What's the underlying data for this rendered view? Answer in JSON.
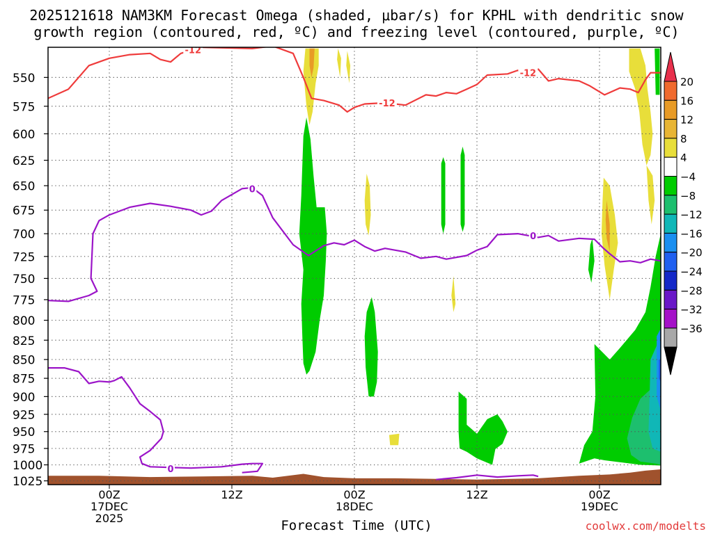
{
  "title_line1": "2025121618 NAM3KM Forecast Omega (shaded, μbar/s) for KPHL with dendritic snow",
  "title_line2": "growth region (contoured, red, ºC) and freezing level (contoured, purple, ºC)",
  "credit": "coolwx.com/modelts",
  "chart_data": {
    "type": "heatmap",
    "xlabel": "Forecast Time (UTC)",
    "ylabel": "",
    "x_ticks": [
      {
        "label": "00Z",
        "sub1": "17DEC",
        "sub2": "2025"
      },
      {
        "label": "12Z",
        "sub1": "",
        "sub2": ""
      },
      {
        "label": "00Z",
        "sub1": "18DEC",
        "sub2": ""
      },
      {
        "label": "12Z",
        "sub1": "",
        "sub2": ""
      },
      {
        "label": "00Z",
        "sub1": "19DEC",
        "sub2": ""
      }
    ],
    "x_tick_hours": [
      6,
      18,
      30,
      42,
      54
    ],
    "x_range_hours": [
      0,
      60
    ],
    "y_ticks": [
      550,
      575,
      600,
      625,
      650,
      675,
      700,
      725,
      750,
      775,
      800,
      825,
      850,
      875,
      900,
      925,
      950,
      975,
      1000,
      1025
    ],
    "y_range_hpa": [
      525,
      1031
    ],
    "grid": true,
    "colorbar": {
      "labels": [
        "20",
        "16",
        "12",
        "8",
        "4",
        "−4",
        "−8",
        "−12",
        "−16",
        "−20",
        "−24",
        "−28",
        "−32",
        "−36"
      ],
      "colors": [
        "#e8304c",
        "#f06a2e",
        "#e89b26",
        "#e8b534",
        "#e8de3a",
        "#ffffff",
        "#00cc00",
        "#1dbf6e",
        "#10b7b7",
        "#1a8ff0",
        "#2060f0",
        "#1428c8",
        "#6a17c8",
        "#a512c8",
        "#a8a8a8",
        "#000000"
      ]
    },
    "contour_labels": {
      "snow_growth": "-12",
      "freezing": "0"
    },
    "snow_growth_contour": [
      [
        0,
        568
      ],
      [
        2,
        560
      ],
      [
        4,
        540
      ],
      [
        6,
        534
      ],
      [
        8,
        531
      ],
      [
        10,
        530
      ],
      [
        11,
        535
      ],
      [
        12,
        537
      ],
      [
        13,
        530
      ],
      [
        15,
        525
      ],
      [
        20,
        526
      ],
      [
        22,
        524
      ],
      [
        24,
        530
      ],
      [
        25,
        550
      ],
      [
        25.8,
        568
      ],
      [
        27,
        570
      ],
      [
        28.5,
        574
      ],
      [
        29.3,
        580
      ],
      [
        30,
        576
      ],
      [
        31,
        573
      ],
      [
        33,
        572
      ],
      [
        35,
        574
      ],
      [
        37,
        565
      ],
      [
        38,
        566
      ],
      [
        39,
        563
      ],
      [
        40,
        564
      ],
      [
        41,
        560
      ],
      [
        42,
        556
      ],
      [
        43,
        548
      ],
      [
        45,
        547
      ],
      [
        46,
        544
      ],
      [
        47,
        548
      ],
      [
        48,
        543
      ],
      [
        49,
        553
      ],
      [
        50,
        551
      ],
      [
        52,
        553
      ],
      [
        53,
        557
      ],
      [
        54.5,
        565
      ],
      [
        56,
        559
      ],
      [
        57,
        560
      ],
      [
        57.8,
        563
      ],
      [
        58.5,
        552
      ],
      [
        59,
        546
      ],
      [
        60,
        546
      ]
    ],
    "freezing_upper": [
      [
        0,
        776
      ],
      [
        2,
        777
      ],
      [
        4,
        770
      ],
      [
        4.8,
        765
      ],
      [
        4.2,
        750
      ],
      [
        4.4,
        700
      ],
      [
        5,
        686
      ],
      [
        6,
        680
      ],
      [
        8,
        672
      ],
      [
        10,
        668
      ],
      [
        12,
        671
      ],
      [
        14,
        675
      ],
      [
        15,
        680
      ],
      [
        16,
        676
      ],
      [
        17,
        665
      ],
      [
        19,
        653
      ],
      [
        20,
        652
      ],
      [
        21,
        660
      ],
      [
        22,
        683
      ],
      [
        24,
        712
      ],
      [
        25.5,
        724
      ],
      [
        27,
        713
      ],
      [
        28,
        710
      ],
      [
        29,
        712
      ],
      [
        30,
        707
      ],
      [
        31,
        714
      ],
      [
        32,
        719
      ],
      [
        33,
        716
      ],
      [
        35,
        720
      ],
      [
        36.5,
        727
      ],
      [
        38,
        725
      ],
      [
        39,
        728
      ],
      [
        41,
        724
      ],
      [
        42,
        718
      ],
      [
        43,
        714
      ],
      [
        44,
        701
      ],
      [
        46,
        700
      ],
      [
        48,
        704
      ],
      [
        49,
        702
      ],
      [
        50,
        708
      ],
      [
        52,
        705
      ],
      [
        53.5,
        706
      ],
      [
        54.3,
        715
      ],
      [
        55,
        722
      ],
      [
        56,
        731
      ],
      [
        57,
        730
      ],
      [
        58,
        732
      ],
      [
        59,
        728
      ],
      [
        60,
        730
      ]
    ],
    "freezing_lower": [
      [
        0,
        861
      ],
      [
        1.6,
        861
      ],
      [
        3,
        866
      ],
      [
        4,
        882
      ],
      [
        5,
        879
      ],
      [
        6,
        880
      ],
      [
        6.5,
        878
      ],
      [
        7.2,
        873
      ],
      [
        8,
        888
      ],
      [
        9,
        910
      ],
      [
        10,
        921
      ],
      [
        11,
        933
      ],
      [
        11.3,
        950
      ],
      [
        11.1,
        960
      ],
      [
        10,
        978
      ],
      [
        9,
        988
      ],
      [
        9.2,
        998
      ],
      [
        10,
        1003
      ],
      [
        12,
        1004
      ],
      [
        14,
        1005
      ],
      [
        17,
        1003
      ],
      [
        19,
        999
      ],
      [
        20,
        998
      ],
      [
        21,
        998
      ],
      [
        20.5,
        1010
      ],
      [
        19,
        1012
      ]
    ],
    "freezing_bottom": [
      [
        38,
        1023
      ],
      [
        40,
        1020
      ],
      [
        42,
        1016
      ],
      [
        44,
        1019
      ],
      [
        46,
        1017
      ],
      [
        47.5,
        1016
      ],
      [
        48,
        1018
      ]
    ],
    "regions": [
      {
        "value": -6,
        "points": [
          [
            25,
            602
          ],
          [
            25.3,
            585
          ],
          [
            25.7,
            605
          ],
          [
            26,
            640
          ],
          [
            26.3,
            672
          ],
          [
            27.1,
            672
          ],
          [
            27.3,
            700
          ],
          [
            27.2,
            730
          ],
          [
            27,
            770
          ],
          [
            26.6,
            800
          ],
          [
            26.2,
            840
          ],
          [
            25.6,
            865
          ],
          [
            25.3,
            870
          ],
          [
            25,
            855
          ],
          [
            24.9,
            820
          ],
          [
            24.8,
            780
          ],
          [
            25,
            740
          ],
          [
            24.6,
            700
          ],
          [
            24.8,
            660
          ],
          [
            24.9,
            630
          ]
        ]
      },
      {
        "value": -6,
        "points": [
          [
            31.2,
            790
          ],
          [
            31.7,
            772
          ],
          [
            32,
            790
          ],
          [
            32.3,
            840
          ],
          [
            32.2,
            880
          ],
          [
            31.9,
            900
          ],
          [
            31.4,
            900
          ],
          [
            31.1,
            860
          ],
          [
            31,
            820
          ]
        ]
      },
      {
        "value": -6,
        "points": [
          [
            38.7,
            622
          ],
          [
            38.9,
            628
          ],
          [
            38.9,
            690
          ],
          [
            38.7,
            700
          ],
          [
            38.5,
            690
          ],
          [
            38.5,
            628
          ]
        ]
      },
      {
        "value": -6,
        "points": [
          [
            40.6,
            612
          ],
          [
            40.8,
            620
          ],
          [
            40.8,
            690
          ],
          [
            40.6,
            698
          ],
          [
            40.4,
            690
          ],
          [
            40.4,
            620
          ]
        ]
      },
      {
        "value": -6,
        "points": [
          [
            40.2,
            893
          ],
          [
            41,
            903
          ],
          [
            41,
            940
          ],
          [
            42,
            953
          ],
          [
            43,
            932
          ],
          [
            44,
            925
          ],
          [
            44.5,
            935
          ],
          [
            45,
            950
          ],
          [
            44.5,
            968
          ],
          [
            43.8,
            976
          ],
          [
            43.5,
            1000
          ],
          [
            42,
            990
          ],
          [
            41,
            980
          ],
          [
            40.3,
            975
          ],
          [
            40.2,
            950
          ]
        ]
      },
      {
        "value": -6,
        "points": [
          [
            53.1,
            712
          ],
          [
            53.3,
            705
          ],
          [
            53.5,
            730
          ],
          [
            53.2,
            755
          ],
          [
            52.9,
            740
          ]
        ]
      },
      {
        "value": -6,
        "points": [
          [
            53.5,
            830
          ],
          [
            55,
            850
          ],
          [
            56,
            835
          ],
          [
            57.5,
            812
          ],
          [
            58.5,
            790
          ],
          [
            59,
            760
          ],
          [
            59.5,
            725
          ],
          [
            60,
            700
          ],
          [
            60,
            1001
          ],
          [
            58,
            1000
          ],
          [
            56,
            996
          ],
          [
            54.5,
            993
          ],
          [
            53.5,
            990
          ],
          [
            52,
            998
          ],
          [
            52.5,
            970
          ],
          [
            53.3,
            950
          ],
          [
            53.6,
            900
          ]
        ]
      },
      {
        "value": -10,
        "points": [
          [
            58,
            903
          ],
          [
            59,
            890
          ],
          [
            60,
            880
          ],
          [
            60,
            1000
          ],
          [
            59.5,
            998
          ],
          [
            58,
            995
          ],
          [
            57.1,
            985
          ],
          [
            56.7,
            960
          ],
          [
            57.2,
            930
          ]
        ]
      },
      {
        "value": -14,
        "points": [
          [
            59,
            850
          ],
          [
            60,
            820
          ],
          [
            60,
            980
          ],
          [
            59.2,
            975
          ],
          [
            58.8,
            950
          ],
          [
            58.9,
            900
          ]
        ]
      },
      {
        "value": -18,
        "points": [
          [
            59.6,
            820
          ],
          [
            60,
            810
          ],
          [
            60,
            920
          ],
          [
            59.6,
            900
          ]
        ]
      },
      {
        "value": -22,
        "points": [
          [
            59.8,
            850
          ],
          [
            60,
            850
          ],
          [
            60,
            880
          ],
          [
            59.8,
            875
          ]
        ]
      },
      {
        "value": 6,
        "points": [
          [
            25.2,
            526
          ],
          [
            26.5,
            526
          ],
          [
            26.5,
            540
          ],
          [
            26.2,
            555
          ],
          [
            25.9,
            580
          ],
          [
            25.6,
            592
          ],
          [
            25.3,
            575
          ],
          [
            25,
            545
          ]
        ]
      },
      {
        "value": 10,
        "points": [
          [
            25.6,
            526
          ],
          [
            26.1,
            526
          ],
          [
            26,
            542
          ],
          [
            25.8,
            550
          ],
          [
            25.6,
            540
          ]
        ]
      },
      {
        "value": 6,
        "points": [
          [
            28.4,
            526
          ],
          [
            28.7,
            534
          ],
          [
            28.6,
            550
          ],
          [
            28.3,
            535
          ]
        ]
      },
      {
        "value": 6,
        "points": [
          [
            29.3,
            528
          ],
          [
            29.6,
            540
          ],
          [
            29.5,
            555
          ],
          [
            29.2,
            540
          ]
        ]
      },
      {
        "value": 6,
        "points": [
          [
            31.2,
            638
          ],
          [
            31.5,
            650
          ],
          [
            31.6,
            680
          ],
          [
            31.4,
            702
          ],
          [
            31.1,
            690
          ],
          [
            31,
            665
          ]
        ]
      },
      {
        "value": 6,
        "points": [
          [
            39.7,
            747
          ],
          [
            39.9,
            780
          ],
          [
            39.7,
            790
          ],
          [
            39.5,
            770
          ]
        ]
      },
      {
        "value": 6,
        "points": [
          [
            33.4,
            955
          ],
          [
            34.4,
            953
          ],
          [
            34.3,
            970
          ],
          [
            33.5,
            970
          ]
        ]
      },
      {
        "value": 6,
        "points": [
          [
            56.9,
            526
          ],
          [
            58,
            526
          ],
          [
            58.5,
            540
          ],
          [
            58.7,
            560
          ],
          [
            59,
            580
          ],
          [
            59.2,
            600
          ],
          [
            59,
            620
          ],
          [
            58.6,
            630
          ],
          [
            58.2,
            610
          ],
          [
            57.9,
            580
          ],
          [
            57.5,
            560
          ],
          [
            56.9,
            545
          ]
        ]
      },
      {
        "value": 6,
        "points": [
          [
            54.4,
            642
          ],
          [
            55,
            650
          ],
          [
            55.5,
            680
          ],
          [
            55.8,
            710
          ],
          [
            55.4,
            740
          ],
          [
            55,
            775
          ],
          [
            54.5,
            735
          ],
          [
            54.2,
            700
          ],
          [
            54.3,
            665
          ]
        ]
      },
      {
        "value": 10,
        "points": [
          [
            54.7,
            665
          ],
          [
            55,
            690
          ],
          [
            55,
            720
          ],
          [
            54.7,
            705
          ],
          [
            54.6,
            685
          ]
        ]
      },
      {
        "value": 6,
        "points": [
          [
            58.6,
            630
          ],
          [
            59.2,
            640
          ],
          [
            59.4,
            665
          ],
          [
            59.1,
            690
          ],
          [
            58.8,
            665
          ]
        ]
      }
    ],
    "green_strip": [
      [
        59.4,
        526
      ],
      [
        59.9,
        526
      ],
      [
        59.9,
        565
      ],
      [
        59.5,
        565
      ]
    ],
    "terrain": [
      [
        0,
        1017
      ],
      [
        5,
        1017
      ],
      [
        10,
        1019
      ],
      [
        15,
        1018
      ],
      [
        20,
        1017
      ],
      [
        22,
        1020
      ],
      [
        25,
        1014
      ],
      [
        27,
        1019
      ],
      [
        30,
        1021
      ],
      [
        34,
        1021
      ],
      [
        38,
        1022
      ],
      [
        42,
        1023
      ],
      [
        48,
        1021
      ],
      [
        52,
        1017
      ],
      [
        55,
        1015
      ],
      [
        57,
        1012
      ],
      [
        58.5,
        1009
      ],
      [
        60,
        1007
      ]
    ]
  }
}
